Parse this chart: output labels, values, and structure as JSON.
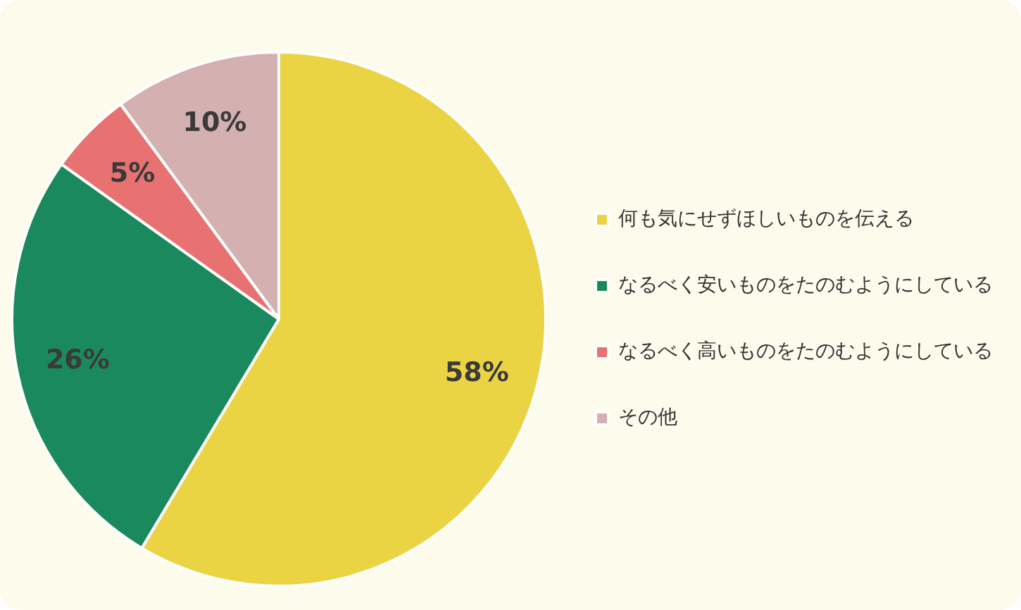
{
  "chart_data": {
    "type": "pie",
    "categories": [
      "何も気にせずほしいものを伝える",
      "なるべく安いものをたのむようにしている",
      "なるべく高いものをたのむようにしている",
      "その他"
    ],
    "values": [
      58,
      26,
      5,
      10
    ],
    "colors": [
      "#ebd444",
      "#1a8a5e",
      "#e87272",
      "#d4b0b0"
    ],
    "value_labels": [
      "58%",
      "26%",
      "5%",
      "10%"
    ],
    "legend": "right"
  }
}
